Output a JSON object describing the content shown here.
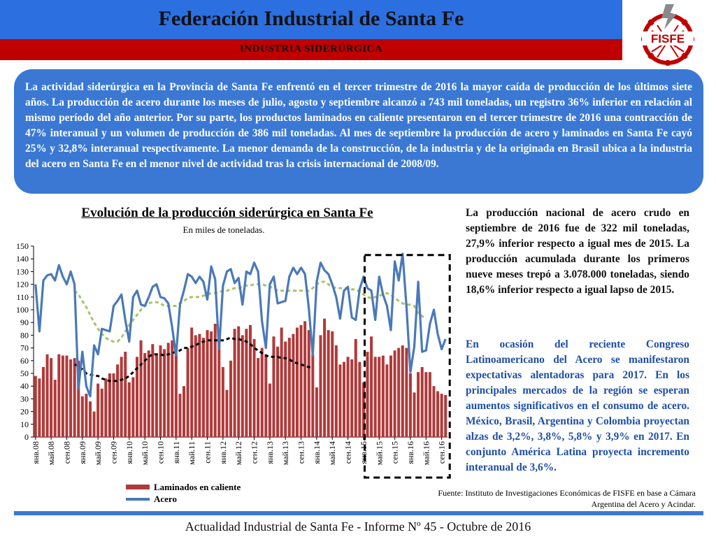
{
  "header": {
    "title": "Federación Industrial de Santa Fe",
    "subtitle": "INDUSTRIA SIDERÚRGICA",
    "logo_text": "FISFE"
  },
  "intro_text": "La actividad siderúrgica en la Provincia de Santa Fe enfrentó en el tercer trimestre de 2016 la mayor caída de producción de los últimos siete años. La producción de acero durante los meses de julio, agosto y septiembre alcanzó a 743 mil toneladas, un registro 36% inferior en relación al mismo período del año anterior. Por su parte, los productos laminados en caliente presentaron en el tercer trimestre de 2016 una contracción de 47% interanual y un volumen de producción de 386 mil toneladas. Al mes de septiembre la producción de acero y laminados en Santa Fe cayó 25% y 32,8% interanual respectivamente. La menor demanda de la construcción, de la industria y de la originada en Brasil ubica a la industria del acero en Santa Fe en el menor nivel de actividad tras la crisis internacional de 2008/09.",
  "chart_data": {
    "type": "bar",
    "title": "Evolución de la producción siderúrgica en Santa Fe",
    "subtitle": "En miles de toneladas.",
    "ylim": [
      0,
      150
    ],
    "yticks": [
      0,
      10,
      20,
      30,
      40,
      50,
      60,
      70,
      80,
      90,
      100,
      110,
      120,
      130,
      140,
      150
    ],
    "tick_labels": [
      "янв.08",
      "май.08",
      "сен.08",
      "янв.09",
      "май.09",
      "сен.09",
      "янв.10",
      "май.10",
      "сен.10",
      "янв.11",
      "май.11",
      "сен.11",
      "янв.12",
      "май.12",
      "сен.12",
      "янв.13",
      "май.13",
      "сен.13",
      "янв.14",
      "май.14",
      "сен.14",
      "янв.15",
      "май.15",
      "сен.15",
      "янв.16",
      "май.16",
      "сен.16"
    ],
    "legend_position": "bottom",
    "series": [
      {
        "name": "Laminados en caliente",
        "kind": "bar",
        "color": "#b03a3a",
        "values": [
          48,
          46,
          55,
          65,
          62,
          45,
          65,
          64,
          64,
          61,
          62,
          60,
          32,
          34,
          28,
          20,
          42,
          38,
          46,
          50,
          50,
          57,
          63,
          67,
          43,
          47,
          63,
          76,
          66,
          68,
          73,
          65,
          72,
          69,
          74,
          76,
          65,
          34,
          40,
          70,
          86,
          80,
          81,
          78,
          84,
          83,
          89,
          79,
          55,
          37,
          60,
          85,
          87,
          80,
          85,
          88,
          77,
          62,
          70,
          65,
          42,
          79,
          71,
          86,
          75,
          78,
          81,
          86,
          88,
          91,
          84,
          65,
          39,
          80,
          93,
          84,
          83,
          72,
          57,
          59,
          63,
          61,
          77,
          59,
          43,
          67,
          79,
          63,
          63,
          64,
          57,
          64,
          68,
          70,
          72,
          70,
          50,
          35,
          51,
          55,
          51,
          51,
          40,
          36,
          34,
          33
        ]
      },
      {
        "name": "Acero",
        "kind": "line",
        "color": "#4a79b8",
        "values": [
          120,
          83,
          123,
          127,
          128,
          123,
          135,
          126,
          120,
          130,
          120,
          38,
          67,
          40,
          32,
          72,
          65,
          85,
          84,
          83,
          103,
          107,
          112,
          92,
          75,
          110,
          115,
          104,
          103,
          110,
          118,
          120,
          110,
          109,
          105,
          86,
          64,
          104,
          115,
          128,
          126,
          121,
          126,
          122,
          108,
          134,
          124,
          69,
          119,
          130,
          132,
          121,
          125,
          104,
          130,
          128,
          137,
          130,
          91,
          70,
          120,
          126,
          105,
          106,
          107,
          126,
          133,
          128,
          133,
          128,
          101,
          64,
          122,
          137,
          131,
          128,
          120,
          110,
          93,
          115,
          118,
          94,
          92,
          116,
          126,
          117,
          115,
          92,
          126,
          112,
          103,
          84,
          138,
          123,
          144,
          102,
          51,
          71,
          122,
          67,
          68,
          89,
          100,
          81,
          69,
          77
        ]
      },
      {
        "name": "Laminados tendencia",
        "kind": "dashed",
        "color": "#000000",
        "values": [
          57,
          56,
          53,
          50,
          49,
          48,
          48,
          46,
          45,
          44,
          44,
          44,
          45,
          46,
          48,
          51,
          54,
          57,
          60,
          63,
          65,
          65,
          65,
          64,
          65,
          66,
          67,
          68,
          70,
          70,
          71,
          72,
          74,
          75,
          76,
          76,
          76,
          76,
          76,
          77,
          78,
          77,
          77,
          76,
          75,
          73,
          70,
          68,
          66,
          64,
          63,
          63,
          63,
          62,
          62,
          61,
          59,
          58,
          57,
          56,
          55,
          54
        ]
      },
      {
        "name": "Acero tendencia",
        "kind": "dashed",
        "color": "#a6c468",
        "values": [
          115,
          112,
          107,
          102,
          96,
          90,
          85,
          81,
          78,
          76,
          75,
          75,
          78,
          83,
          88,
          92,
          96,
          100,
          103,
          105,
          106,
          106,
          105,
          103,
          103,
          103,
          103,
          105,
          107,
          109,
          110,
          110,
          110,
          111,
          112,
          113,
          113,
          114,
          115,
          115,
          116,
          117,
          117,
          118,
          119,
          119,
          120,
          120,
          120,
          119,
          118,
          117,
          115,
          115,
          115,
          115,
          115,
          115,
          115,
          115,
          115,
          117,
          120,
          122,
          122,
          120,
          118,
          117,
          117,
          117,
          117,
          116,
          116,
          114,
          112,
          110,
          109,
          110,
          111,
          112,
          113,
          112,
          109,
          107,
          105,
          104,
          104,
          103,
          97,
          95,
          93
        ]
      }
    ]
  },
  "right_text": {
    "p1": "La producción nacional de acero crudo en septiembre de 2016 fue de 322 mil toneladas, 27,9% inferior respecto a igual mes de 2015. La producción acumulada durante los primeros nueve meses trepó a 3.078.000 toneladas, siendo 18,6% inferior respecto a igual lapso de 2015.",
    "p2": "En ocasión del reciente Congreso Latinoamericano del Acero se manifestaron expectativas alentadoras para 2017. En los principales mercados de la región se esperan aumentos significativos en el consumo de acero. México, Brasil, Argentina y Colombia proyectan alzas de 3,2%, 3,8%, 5,8% y 3,9% en 2017. En conjunto América Latina proyecta incremento interanual de 3,6%."
  },
  "source": "Fuente: Instituto de Investigaciones Económicas de FISFE en base a Cámara Argentina del Acero y Acindar.",
  "footer": "Actualidad Industrial de Santa Fe - Informe Nº 45 - Octubre de 2016"
}
